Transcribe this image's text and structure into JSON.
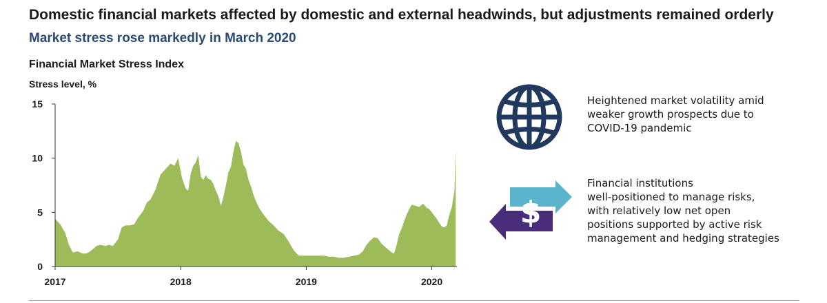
{
  "header": {
    "title": "Domestic financial markets affected by domestic and external headwinds, but adjustments remained orderly",
    "subtitle": "Market stress rose markedly in March 2020"
  },
  "chart_data": {
    "type": "area",
    "title": "Financial Market Stress Index",
    "xlabel": "",
    "ylabel": "Stress level, %",
    "ylim": [
      0,
      15
    ],
    "yticks": [
      0,
      5,
      10,
      15
    ],
    "xlim": [
      2017.0,
      2020.2
    ],
    "xticks": [
      2017,
      2018,
      2019,
      2020
    ],
    "grid": false,
    "legend": "none",
    "series": [
      {
        "color": "#9dbb59",
        "x": [
          2017.0,
          2017.04,
          2017.08,
          2017.11,
          2017.14,
          2017.18,
          2017.22,
          2017.25,
          2017.28,
          2017.3,
          2017.33,
          2017.36,
          2017.4,
          2017.43,
          2017.46,
          2017.5,
          2017.53,
          2017.56,
          2017.6,
          2017.63,
          2017.66,
          2017.7,
          2017.73,
          2017.76,
          2017.8,
          2017.84,
          2017.88,
          2017.92,
          2017.95,
          2017.98,
          2018.01,
          2018.04,
          2018.06,
          2018.08,
          2018.1,
          2018.12,
          2018.14,
          2018.16,
          2018.18,
          2018.2,
          2018.22,
          2018.24,
          2018.26,
          2018.28,
          2018.3,
          2018.32,
          2018.34,
          2018.36,
          2018.38,
          2018.4,
          2018.42,
          2018.44,
          2018.46,
          2018.48,
          2018.5,
          2018.52,
          2018.54,
          2018.56,
          2018.58,
          2018.6,
          2018.63,
          2018.66,
          2018.7,
          2018.74,
          2018.78,
          2018.82,
          2018.86,
          2018.9,
          2018.94,
          2018.98,
          2019.02,
          2019.06,
          2019.1,
          2019.14,
          2019.18,
          2019.22,
          2019.26,
          2019.3,
          2019.34,
          2019.38,
          2019.42,
          2019.45,
          2019.48,
          2019.51,
          2019.54,
          2019.57,
          2019.6,
          2019.63,
          2019.66,
          2019.68,
          2019.7,
          2019.72,
          2019.74,
          2019.76,
          2019.78,
          2019.8,
          2019.82,
          2019.84,
          2019.87,
          2019.9,
          2019.93,
          2019.96,
          2019.98,
          2020.0,
          2020.02,
          2020.04,
          2020.06,
          2020.08,
          2020.1,
          2020.12,
          2020.14,
          2020.16,
          2020.18,
          2020.19
        ],
        "values": [
          4.4,
          3.9,
          3.1,
          2.0,
          1.3,
          1.4,
          1.2,
          1.2,
          1.4,
          1.6,
          1.9,
          2.0,
          1.9,
          2.0,
          1.9,
          2.5,
          3.6,
          3.8,
          3.8,
          3.9,
          4.5,
          5.1,
          5.9,
          6.2,
          7.1,
          8.5,
          9.0,
          9.5,
          9.3,
          10.0,
          8.2,
          7.2,
          7.0,
          8.6,
          9.3,
          9.6,
          10.3,
          8.3,
          8.0,
          8.4,
          8.1,
          8.0,
          7.6,
          7.0,
          6.5,
          5.6,
          6.4,
          7.5,
          8.7,
          9.2,
          10.6,
          11.6,
          11.4,
          10.6,
          9.4,
          9.0,
          8.0,
          7.4,
          6.6,
          6.0,
          5.3,
          4.8,
          4.2,
          3.8,
          3.3,
          3.0,
          2.3,
          1.5,
          1.0,
          1.0,
          1.0,
          1.0,
          1.0,
          1.0,
          0.9,
          0.9,
          0.8,
          0.8,
          0.9,
          1.0,
          1.1,
          1.4,
          2.0,
          2.4,
          2.7,
          2.6,
          2.1,
          1.8,
          1.5,
          1.3,
          1.2,
          2.0,
          3.0,
          3.5,
          4.2,
          4.8,
          5.3,
          5.7,
          5.6,
          5.5,
          5.8,
          5.4,
          5.3,
          5.0,
          4.7,
          4.4,
          4.0,
          3.7,
          3.6,
          3.8,
          4.8,
          5.5,
          7.0,
          10.8
        ]
      }
    ]
  },
  "panel": {
    "items": [
      {
        "icon": "globe-icon",
        "text": [
          "Heightened market volatility amid",
          "weaker growth prospects due to",
          "COVID-19 pandemic"
        ]
      },
      {
        "icon": "currency-exchange-icon",
        "text": [
          "Financial institutions",
          "well-positioned to manage risks,",
          "with relatively low net open",
          "positions supported by active risk",
          "management and hedging strategies"
        ]
      }
    ],
    "colors": {
      "globe": "#21385f",
      "arrow_right": "#5ab4cc",
      "arrow_left": "#4a2d7a"
    },
    "dollar_glyph": "$"
  }
}
